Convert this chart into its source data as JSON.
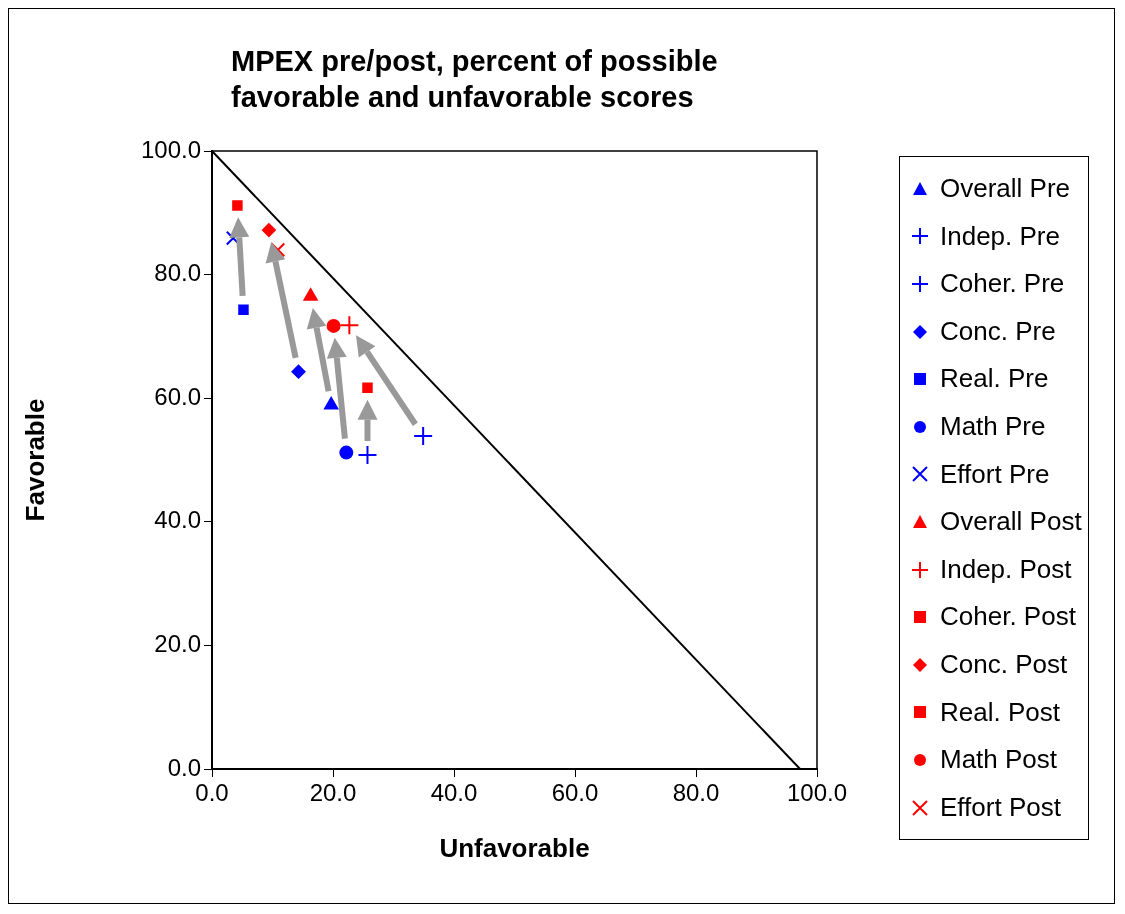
{
  "chart_data": {
    "type": "scatter",
    "title": "MPEX pre/post, percent of possible\nfavorable and unfavorable scores",
    "xlabel": "Unfavorable",
    "ylabel": "Favorable",
    "xlim": [
      0,
      100
    ],
    "ylim": [
      0,
      100
    ],
    "xticks": [
      {
        "value": 0,
        "label": "0.0"
      },
      {
        "value": 20,
        "label": "20.0"
      },
      {
        "value": 40,
        "label": "40.0"
      },
      {
        "value": 60,
        "label": "60.0"
      },
      {
        "value": 80,
        "label": "80.0"
      },
      {
        "value": 100,
        "label": "100.0"
      }
    ],
    "yticks": [
      {
        "value": 0,
        "label": "0.0"
      },
      {
        "value": 20,
        "label": "20.0"
      },
      {
        "value": 40,
        "label": "40.0"
      },
      {
        "value": 60,
        "label": "60.0"
      },
      {
        "value": 80,
        "label": "80.0"
      },
      {
        "value": 100,
        "label": "100.0"
      }
    ],
    "grid": false,
    "legend": "right",
    "series": [
      {
        "name": "Overall Pre",
        "color": "#0000ff",
        "marker": "triangle",
        "x": [
          19.7
        ],
        "values": [
          58.9
        ]
      },
      {
        "name": "Indep. Pre",
        "color": "#0000ff",
        "marker": "cross",
        "x": [
          34.9
        ],
        "values": [
          53.9
        ]
      },
      {
        "name": "Coher. Pre",
        "color": "#0000ff",
        "marker": "cross",
        "x": [
          25.7
        ],
        "values": [
          50.8
        ]
      },
      {
        "name": "Conc. Pre",
        "color": "#0000ff",
        "marker": "diamond",
        "x": [
          14.3
        ],
        "values": [
          64.3
        ]
      },
      {
        "name": "Real. Pre",
        "color": "#0000ff",
        "marker": "square",
        "x": [
          5.2
        ],
        "values": [
          74.3
        ]
      },
      {
        "name": "Math Pre",
        "color": "#0000ff",
        "marker": "circle",
        "x": [
          22.2
        ],
        "values": [
          51.2
        ]
      },
      {
        "name": "Effort Pre",
        "color": "#0000ff",
        "marker": "x",
        "x": [
          3.5
        ],
        "values": [
          85.9
        ]
      },
      {
        "name": "Overall Post",
        "color": "#ff0000",
        "marker": "triangle",
        "x": [
          16.3
        ],
        "values": [
          76.5
        ]
      },
      {
        "name": "Indep. Post",
        "color": "#ff0000",
        "marker": "cross",
        "x": [
          22.7
        ],
        "values": [
          71.8
        ]
      },
      {
        "name": "Coher. Post",
        "color": "#ff0000",
        "marker": "square",
        "x": [
          25.7
        ],
        "values": [
          61.7
        ]
      },
      {
        "name": "Conc. Post",
        "color": "#ff0000",
        "marker": "diamond",
        "x": [
          9.4
        ],
        "values": [
          87.2
        ]
      },
      {
        "name": "Real. Post",
        "color": "#ff0000",
        "marker": "square",
        "x": [
          4.2
        ],
        "values": [
          91.2
        ]
      },
      {
        "name": "Math Post",
        "color": "#ff0000",
        "marker": "circle",
        "x": [
          20.1
        ],
        "values": [
          71.7
        ]
      },
      {
        "name": "Effort Post",
        "color": "#ff0000",
        "marker": "x",
        "x": [
          10.9
        ],
        "values": [
          84.0
        ]
      },
      {
        "type": "line",
        "color": "#000000",
        "marker": "none",
        "x": [
          0,
          97.2
        ],
        "values": [
          100,
          0
        ]
      }
    ]
  }
}
